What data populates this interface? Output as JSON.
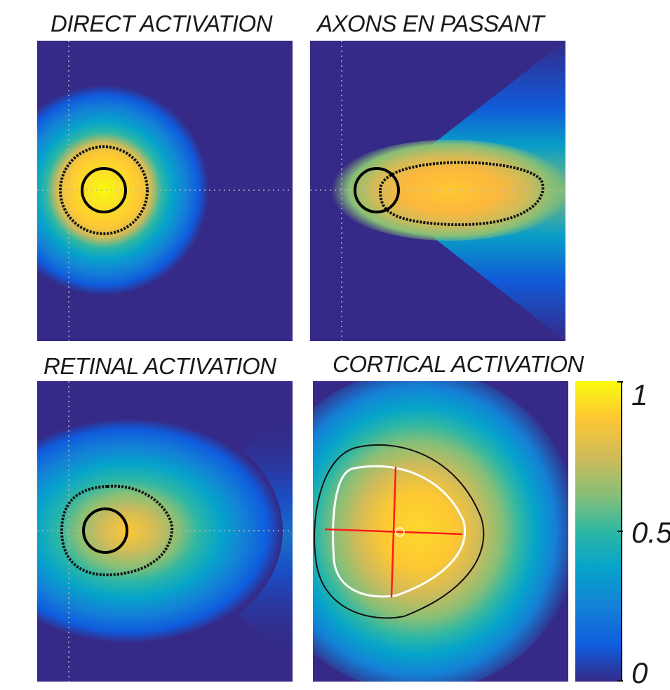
{
  "figure": {
    "panels": [
      {
        "id": "direct",
        "title": "DIRECT ACTIVATION"
      },
      {
        "id": "axons",
        "title": "AXONS EN PASSANT"
      },
      {
        "id": "retinal",
        "title": "RETINAL ACTIVATION"
      },
      {
        "id": "cortical",
        "title": "CORTICAL ACTIVATION"
      }
    ],
    "colormap": [
      "#352a87",
      "#0f5cdd",
      "#1481d6",
      "#06a4ca",
      "#2eb7a4",
      "#87bf77",
      "#d1bb59",
      "#fec832",
      "#f9fb0e"
    ]
  },
  "chart_data": [
    {
      "type": "heatmap",
      "title": "DIRECT ACTIVATION",
      "value_range": [
        0,
        1
      ],
      "grid": "dotted crosshair through electrode"
    },
    {
      "type": "heatmap",
      "title": "AXONS EN PASSANT",
      "value_range": [
        0,
        1
      ],
      "grid": "dotted crosshair through electrode"
    },
    {
      "type": "heatmap",
      "title": "RETINAL ACTIVATION",
      "value_range": [
        0,
        1
      ],
      "grid": "dotted crosshair through electrode"
    },
    {
      "type": "heatmap",
      "title": "CORTICAL ACTIVATION",
      "value_range": [
        0,
        1
      ],
      "colorbar": {
        "ticks": [
          0,
          0.5,
          1
        ],
        "tick_labels": [
          "0",
          "0.5",
          "1"
        ],
        "position": "right"
      }
    }
  ]
}
